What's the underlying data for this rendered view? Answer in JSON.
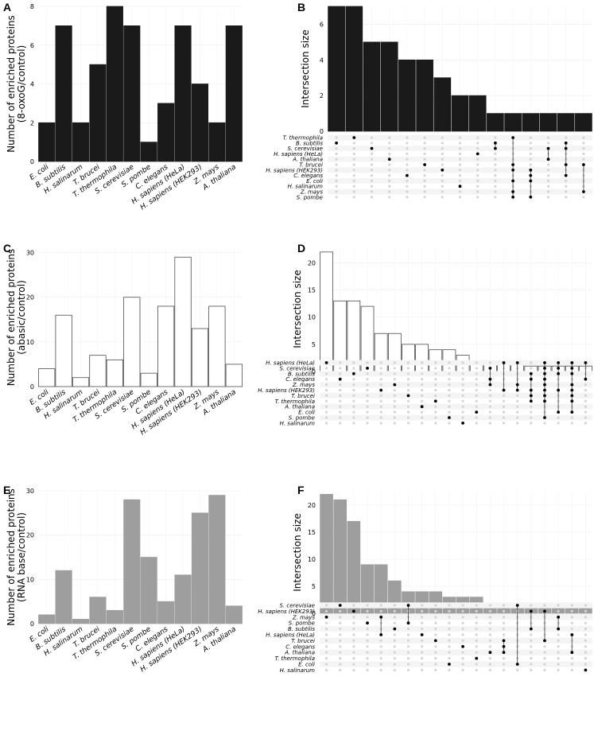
{
  "chart_data": [
    {
      "panel": "A",
      "type": "bar",
      "ylabel": [
        "Number of enriched proteins",
        "(8-oxoG/control)"
      ],
      "categories": [
        "E. coli",
        "B. subtilis",
        "H. salinarum",
        "T. brucei",
        "T. thermophila",
        "S. cerevisiae",
        "S. pombe",
        "C. elegans",
        "H. sapiens (HeLa)",
        "H. sapiens (HEK293)",
        "Z. mays",
        "A. thaliana"
      ],
      "values": [
        2,
        7,
        2,
        5,
        8,
        7,
        1,
        3,
        7,
        4,
        2,
        7
      ],
      "ylim": [
        0,
        8
      ],
      "yticks": [
        0,
        2,
        4,
        6,
        8
      ],
      "fill": "#1a1a1a",
      "stroke": "#1a1a1a"
    },
    {
      "panel": "B",
      "type": "upset",
      "ylabel": "Intersection size",
      "sets": [
        "T. thermophila",
        "B. subtilis",
        "S. cerevisiae",
        "H. sapiens (HeLa)",
        "A. thaliana",
        "T. brucei",
        "H. sapiens (HEK293)",
        "C. elegans",
        "E. coli",
        "H. salinarum",
        "Z. mays",
        "S. pombe"
      ],
      "values": [
        7,
        7,
        5,
        5,
        4,
        4,
        3,
        2,
        2,
        1,
        1,
        1,
        1,
        1,
        1
      ],
      "intersections": [
        [
          1
        ],
        [
          0
        ],
        [
          2
        ],
        [
          4
        ],
        [
          7
        ],
        [
          5
        ],
        [
          6
        ],
        [
          9
        ],
        [
          3
        ],
        [
          1,
          2
        ],
        [
          0,
          5,
          6,
          8,
          10,
          11
        ],
        [
          6,
          7,
          8,
          11
        ],
        [
          2,
          4
        ],
        [
          1,
          2,
          5,
          7
        ],
        [
          5,
          10
        ]
      ],
      "ylim": [
        0,
        7
      ],
      "yticks": [
        0,
        2,
        4,
        6
      ],
      "fill": "#1a1a1a",
      "stroke": "#1a1a1a"
    },
    {
      "panel": "C",
      "type": "bar",
      "ylabel": [
        "Number of enriched proteins",
        "(abasic/control)"
      ],
      "categories": [
        "E. coli",
        "B. subtilis",
        "H. salinarum",
        "T. brucei",
        "T. thermophila",
        "S. cerevisiae",
        "S. pombe",
        "C. elegans",
        "H. sapiens (HeLa)",
        "H. sapiens (HEK293)",
        "Z. mays",
        "A. thaliana"
      ],
      "values": [
        4,
        16,
        2,
        7,
        6,
        20,
        3,
        18,
        29,
        13,
        18,
        5
      ],
      "ylim": [
        0,
        31
      ],
      "yticks": [
        0,
        10,
        20,
        30
      ],
      "fill": "#ffffff",
      "stroke": "#333333"
    },
    {
      "panel": "D",
      "type": "upset",
      "ylabel": "Intersection size",
      "sets": [
        "H. sapiens (HeLa)",
        "S. cerevisiae",
        "B. subtilis",
        "C. elegans",
        "Z. mays",
        "H. sapiens (HEK293)",
        "T. brucei",
        "T. thermophila",
        "A. thaliana",
        "E. coli",
        "S. pombe",
        "H. salinarum"
      ],
      "values": [
        22,
        13,
        13,
        12,
        7,
        7,
        5,
        5,
        4,
        4,
        3,
        2,
        2,
        2,
        2,
        1,
        1,
        1,
        1,
        1
      ],
      "intersections": [
        [
          0
        ],
        [
          3
        ],
        [
          2
        ],
        [
          1
        ],
        [
          5
        ],
        [
          4
        ],
        [
          6
        ],
        [
          8
        ],
        [
          7
        ],
        [
          10
        ],
        [
          11
        ],
        [
          9
        ],
        [
          1,
          3,
          4
        ],
        [
          0,
          5
        ],
        [
          0,
          4,
          5
        ],
        [
          2,
          3,
          5,
          6,
          7
        ],
        [
          0,
          1,
          2,
          3,
          4,
          5,
          6,
          7,
          10
        ],
        [
          0,
          1,
          2,
          5,
          9
        ],
        [
          0,
          1,
          2,
          4,
          5,
          6,
          7,
          9
        ],
        [
          0,
          3
        ]
      ],
      "ylim": [
        0,
        23
      ],
      "yticks": [
        0,
        5,
        10,
        15,
        20
      ],
      "fill": "#ffffff",
      "stroke": "#333333"
    },
    {
      "panel": "E",
      "type": "bar",
      "ylabel": [
        "Number of enriched proteins",
        "(RNA base/control)"
      ],
      "categories": [
        "E. coli",
        "B. subtilis",
        "H. salinarum",
        "T. brucei",
        "T. thermophila",
        "S. cerevisiae",
        "S. pombe",
        "C. elegans",
        "H. sapiens (HeLa)",
        "H. sapiens (HEK293)",
        "Z. mays",
        "A. thaliana"
      ],
      "values": [
        2,
        12,
        1,
        6,
        3,
        28,
        15,
        5,
        11,
        25,
        29,
        4
      ],
      "ylim": [
        0,
        30
      ],
      "yticks": [
        0,
        10,
        20,
        30
      ],
      "fill": "#9e9e9e",
      "stroke": "#9e9e9e"
    },
    {
      "panel": "F",
      "type": "upset",
      "ylabel": "Intersection size",
      "sets": [
        "S. cerevisiae",
        "H. sapiens (HEK293)",
        "Z. mays",
        "S. pombe",
        "B. subtilis",
        "H. sapiens (HeLa)",
        "T. brucei",
        "C. elegans",
        "A. thaliana",
        "T. thermophila",
        "E. coli",
        "H. salinarum"
      ],
      "values": [
        22,
        21,
        17,
        9,
        9,
        6,
        4,
        4,
        4,
        3,
        3,
        3,
        1,
        1,
        1,
        1,
        1,
        1,
        1,
        1
      ],
      "intersections": [
        [
          2
        ],
        [
          0
        ],
        [
          1
        ],
        [
          3
        ],
        [
          2,
          5
        ],
        [
          4
        ],
        [
          0,
          3
        ],
        [
          5
        ],
        [
          6
        ],
        [
          10
        ],
        [
          7
        ],
        [
          9
        ],
        [
          8
        ],
        [
          6,
          7,
          8
        ],
        [
          0,
          10
        ],
        [
          1,
          4
        ],
        [
          1,
          6
        ],
        [
          2,
          4
        ],
        [
          5,
          8
        ],
        [
          11
        ]
      ],
      "ylim": [
        0,
        22.5
      ],
      "yticks": [
        0,
        5,
        10,
        15,
        20
      ],
      "fill": "#9e9e9e",
      "stroke": "#9e9e9e"
    }
  ]
}
